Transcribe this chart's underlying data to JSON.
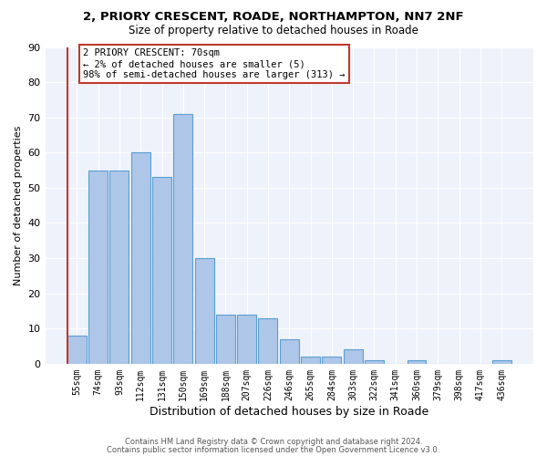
{
  "title1": "2, PRIORY CRESCENT, ROADE, NORTHAMPTON, NN7 2NF",
  "title2": "Size of property relative to detached houses in Roade",
  "xlabel": "Distribution of detached houses by size in Roade",
  "ylabel": "Number of detached properties",
  "footer1": "Contains HM Land Registry data © Crown copyright and database right 2024.",
  "footer2": "Contains public sector information licensed under the Open Government Licence v3.0.",
  "annotation_line1": "2 PRIORY CRESCENT: 70sqm",
  "annotation_line2": "← 2% of detached houses are smaller (5)",
  "annotation_line3": "98% of semi-detached houses are larger (313) →",
  "bar_color": "#aec6e8",
  "bar_edge_color": "#5a9fd4",
  "highlight_edge_color": "#c0392b",
  "background_color": "#eef2fa",
  "categories": [
    "55sqm",
    "74sqm",
    "93sqm",
    "112sqm",
    "131sqm",
    "150sqm",
    "169sqm",
    "188sqm",
    "207sqm",
    "226sqm",
    "246sqm",
    "265sqm",
    "284sqm",
    "303sqm",
    "322sqm",
    "341sqm",
    "360sqm",
    "379sqm",
    "398sqm",
    "417sqm",
    "436sqm"
  ],
  "values": [
    8,
    55,
    55,
    60,
    53,
    71,
    30,
    14,
    14,
    13,
    7,
    2,
    2,
    4,
    1,
    0,
    1,
    0,
    0,
    0,
    1
  ],
  "ylim": [
    0,
    90
  ],
  "yticks": [
    0,
    10,
    20,
    30,
    40,
    50,
    60,
    70,
    80,
    90
  ],
  "highlight_bar_index": 0
}
